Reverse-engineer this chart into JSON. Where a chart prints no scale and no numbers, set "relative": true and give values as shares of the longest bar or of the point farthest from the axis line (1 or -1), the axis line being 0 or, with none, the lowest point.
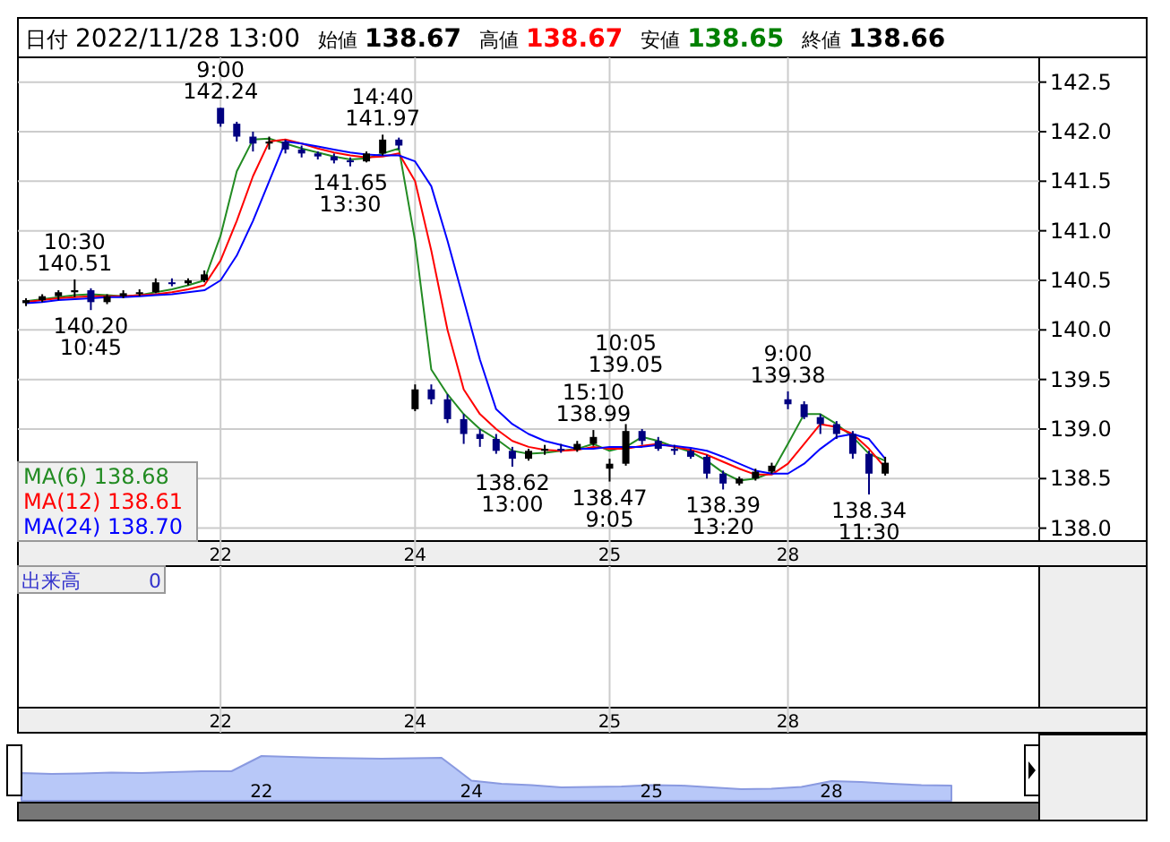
{
  "chart_data": [
    {
      "type": "candlestick",
      "grid": true,
      "legend": "bottom left",
      "ylim": [
        137.87,
        142.75
      ],
      "yticks": [
        {
          "value": 138,
          "label": "138.0"
        },
        {
          "value": 138.5,
          "label": "138.5"
        },
        {
          "value": 139,
          "label": "139.0"
        },
        {
          "value": 139.5,
          "label": "139.5"
        },
        {
          "value": 140,
          "label": "140.0"
        },
        {
          "value": 140.5,
          "label": "140.5"
        },
        {
          "value": 141,
          "label": "141.0"
        },
        {
          "value": 141.5,
          "label": "141.5"
        },
        {
          "value": 142,
          "label": "142.0"
        },
        {
          "value": 142.5,
          "label": "142.5"
        }
      ],
      "categories": [
        null,
        null,
        null,
        null,
        null,
        null,
        null,
        null,
        null,
        null,
        null,
        null,
        "22",
        null,
        null,
        null,
        null,
        null,
        null,
        null,
        null,
        null,
        null,
        null,
        "24",
        null,
        null,
        null,
        null,
        null,
        null,
        null,
        null,
        null,
        null,
        null,
        "25",
        null,
        null,
        null,
        null,
        null,
        null,
        null,
        null,
        null,
        null,
        "28",
        null,
        null,
        null,
        null,
        null,
        null
      ],
      "colors": [
        "#000000",
        "#000000",
        "#000000",
        "#000000",
        "#000080",
        "#000000",
        "#000000",
        "#000000",
        "#000000",
        "#000080",
        "#000000",
        "#000000",
        "#000080",
        "#000080",
        "#000080",
        "#000000",
        "#000080",
        "#000080",
        "#000080",
        "#000080",
        "#000080",
        "#000000",
        "#000000",
        "#000080",
        "#000000",
        "#000080",
        "#000080",
        "#000080",
        "#000080",
        "#000080",
        "#000080",
        "#000000",
        "#000000",
        "#000080",
        "#000000",
        "#000000",
        "#000000",
        "#000000",
        "#000080",
        "#000080",
        "#000080",
        "#000080",
        "#000080",
        "#000080",
        "#000000",
        "#000000",
        "#000000",
        "#000080",
        "#000080",
        "#000080",
        "#000080",
        "#000080",
        "#000080",
        "#000000"
      ],
      "ohlc": [
        [
          140.27,
          140.32,
          140.24,
          140.3
        ],
        [
          140.3,
          140.36,
          140.28,
          140.34
        ],
        [
          140.34,
          140.4,
          140.3,
          140.38
        ],
        [
          140.38,
          140.51,
          140.33,
          140.4
        ],
        [
          140.4,
          140.42,
          140.2,
          140.28
        ],
        [
          140.28,
          140.36,
          140.26,
          140.34
        ],
        [
          140.34,
          140.4,
          140.32,
          140.37
        ],
        [
          140.37,
          140.41,
          140.34,
          140.38
        ],
        [
          140.38,
          140.52,
          140.37,
          140.48
        ],
        [
          140.48,
          140.52,
          140.44,
          140.47
        ],
        [
          140.47,
          140.52,
          140.45,
          140.5
        ],
        [
          140.5,
          140.6,
          140.48,
          140.56
        ],
        [
          142.24,
          142.24,
          142.05,
          142.08
        ],
        [
          142.08,
          142.1,
          141.9,
          141.95
        ],
        [
          141.95,
          142.0,
          141.8,
          141.88
        ],
        [
          141.88,
          141.95,
          141.82,
          141.9
        ],
        [
          141.9,
          141.92,
          141.78,
          141.82
        ],
        [
          141.82,
          141.86,
          141.74,
          141.78
        ],
        [
          141.78,
          141.8,
          141.72,
          141.75
        ],
        [
          141.75,
          141.78,
          141.68,
          141.71
        ],
        [
          141.71,
          141.74,
          141.65,
          141.7
        ],
        [
          141.7,
          141.8,
          141.69,
          141.78
        ],
        [
          141.78,
          141.97,
          141.76,
          141.92
        ],
        [
          141.92,
          141.94,
          141.82,
          141.86
        ],
        [
          139.2,
          139.45,
          139.18,
          139.4
        ],
        [
          139.4,
          139.45,
          139.25,
          139.3
        ],
        [
          139.3,
          139.35,
          139.06,
          139.1
        ],
        [
          139.1,
          139.15,
          138.85,
          138.95
        ],
        [
          138.95,
          139.0,
          138.82,
          138.9
        ],
        [
          138.9,
          138.95,
          138.75,
          138.78
        ],
        [
          138.78,
          138.82,
          138.62,
          138.7
        ],
        [
          138.7,
          138.8,
          138.68,
          138.78
        ],
        [
          138.78,
          138.84,
          138.74,
          138.8
        ],
        [
          138.8,
          138.85,
          138.76,
          138.79
        ],
        [
          138.79,
          138.88,
          138.77,
          138.85
        ],
        [
          138.85,
          138.99,
          138.83,
          138.92
        ],
        [
          138.6,
          138.7,
          138.47,
          138.65
        ],
        [
          138.65,
          139.05,
          138.63,
          138.98
        ],
        [
          138.98,
          139.0,
          138.84,
          138.88
        ],
        [
          138.88,
          138.92,
          138.78,
          138.8
        ],
        [
          138.8,
          138.84,
          138.74,
          138.78
        ],
        [
          138.78,
          138.8,
          138.7,
          138.72
        ],
        [
          138.72,
          138.74,
          138.5,
          138.55
        ],
        [
          138.55,
          138.58,
          138.39,
          138.45
        ],
        [
          138.45,
          138.52,
          138.43,
          138.5
        ],
        [
          138.5,
          138.6,
          138.48,
          138.57
        ],
        [
          138.57,
          138.66,
          138.55,
          138.63
        ],
        [
          139.3,
          139.38,
          139.2,
          139.25
        ],
        [
          139.25,
          139.28,
          139.1,
          139.12
        ],
        [
          139.12,
          139.15,
          138.95,
          139.05
        ],
        [
          139.05,
          139.08,
          138.9,
          138.95
        ],
        [
          138.95,
          138.98,
          138.7,
          138.75
        ],
        [
          138.75,
          138.78,
          138.34,
          138.55
        ],
        [
          138.55,
          138.72,
          138.53,
          138.66
        ]
      ],
      "series": [
        {
          "name": "MA(6) 138.68",
          "type": "line",
          "color": "#228b22",
          "values": [
            140.29,
            140.31,
            140.33,
            140.35,
            140.36,
            140.35,
            140.34,
            140.35,
            140.38,
            140.41,
            140.45,
            140.5,
            140.95,
            141.6,
            141.92,
            141.93,
            141.88,
            141.83,
            141.79,
            141.75,
            141.72,
            141.73,
            141.78,
            141.83,
            140.9,
            139.6,
            139.35,
            139.15,
            139.0,
            138.9,
            138.78,
            138.75,
            138.76,
            138.78,
            138.8,
            138.85,
            138.78,
            138.82,
            138.92,
            138.88,
            138.82,
            138.77,
            138.68,
            138.56,
            138.48,
            138.5,
            138.56,
            138.85,
            139.15,
            139.15,
            139.05,
            138.92,
            138.75,
            138.68
          ]
        },
        {
          "name": "MA(12) 138.61",
          "type": "line",
          "color": "#ff0000",
          "values": [
            140.28,
            140.3,
            140.32,
            140.33,
            140.34,
            140.34,
            140.34,
            140.35,
            140.36,
            140.38,
            140.41,
            140.45,
            140.7,
            141.1,
            141.55,
            141.9,
            141.92,
            141.88,
            141.83,
            141.79,
            141.76,
            141.74,
            141.75,
            141.78,
            141.5,
            140.8,
            140.0,
            139.4,
            139.15,
            139.0,
            138.88,
            138.82,
            138.79,
            138.78,
            138.79,
            138.82,
            138.8,
            138.8,
            138.83,
            138.85,
            138.82,
            138.79,
            138.74,
            138.67,
            138.6,
            138.54,
            138.54,
            138.65,
            138.85,
            139.05,
            139.02,
            138.95,
            138.8,
            138.61
          ]
        },
        {
          "name": "MA(24) 138.70",
          "type": "line",
          "color": "#0000ff",
          "values": [
            140.27,
            140.28,
            140.3,
            140.31,
            140.32,
            140.33,
            140.33,
            140.34,
            140.35,
            140.36,
            140.38,
            140.4,
            140.5,
            140.75,
            141.1,
            141.5,
            141.9,
            141.88,
            141.85,
            141.82,
            141.79,
            141.77,
            141.76,
            141.76,
            141.7,
            141.45,
            140.9,
            140.3,
            139.7,
            139.2,
            139.05,
            138.95,
            138.88,
            138.84,
            138.8,
            138.8,
            138.82,
            138.82,
            138.82,
            138.84,
            138.83,
            138.81,
            138.78,
            138.72,
            138.65,
            138.58,
            138.55,
            138.55,
            138.65,
            138.8,
            138.92,
            138.95,
            138.9,
            138.7
          ]
        }
      ],
      "annotations": [
        "日付",
        "2022/11/28 13:00",
        "始値",
        "138.67",
        "高値",
        "138.67",
        "安値",
        "138.65",
        "終値",
        "138.66",
        {
          "text": "10:30\n140.51",
          "y": 140.51
        },
        {
          "text": "140.20\n10:45",
          "y": 140.2
        },
        {
          "text": "9:00\n142.24",
          "y": 142.24
        },
        {
          "text": "141.65\n13:30",
          "y": 141.65
        },
        {
          "text": "14:40\n141.97",
          "y": 141.97
        },
        {
          "text": "138.62\n13:00",
          "y": 138.62
        },
        {
          "text": "15:10\n138.99",
          "y": 138.99
        },
        {
          "text": "138.47\n9:05",
          "y": 138.47
        },
        {
          "text": "10:05\n139.05",
          "y": 139.05
        },
        {
          "text": "138.39\n13:20",
          "y": 138.39
        },
        {
          "text": "9:00\n139.38",
          "y": 139.38
        },
        {
          "text": "138.34\n11:30",
          "y": 138.34
        }
      ]
    },
    {
      "type": "other",
      "annotations": [
        "出来高",
        "0",
        "22",
        "24",
        "25",
        "28"
      ]
    },
    {
      "type": "area",
      "relative": true,
      "color": "#b8c8f8",
      "categories": [
        null,
        null,
        null,
        null,
        null,
        null,
        null,
        null,
        "22",
        null,
        null,
        null,
        null,
        null,
        null,
        "24",
        null,
        null,
        null,
        null,
        null,
        "25",
        null,
        null,
        null,
        null,
        null,
        "28",
        null,
        null,
        null,
        null
      ],
      "values": [
        0.62,
        0.6,
        0.61,
        0.63,
        0.62,
        0.64,
        0.66,
        0.66,
        1,
        0.98,
        0.96,
        0.95,
        0.94,
        0.95,
        0.96,
        0.45,
        0.38,
        0.35,
        0.3,
        0.31,
        0.32,
        0.35,
        0.34,
        0.3,
        0.26,
        0.27,
        0.31,
        0.44,
        0.42,
        0.38,
        0.35,
        0.34
      ]
    }
  ]
}
